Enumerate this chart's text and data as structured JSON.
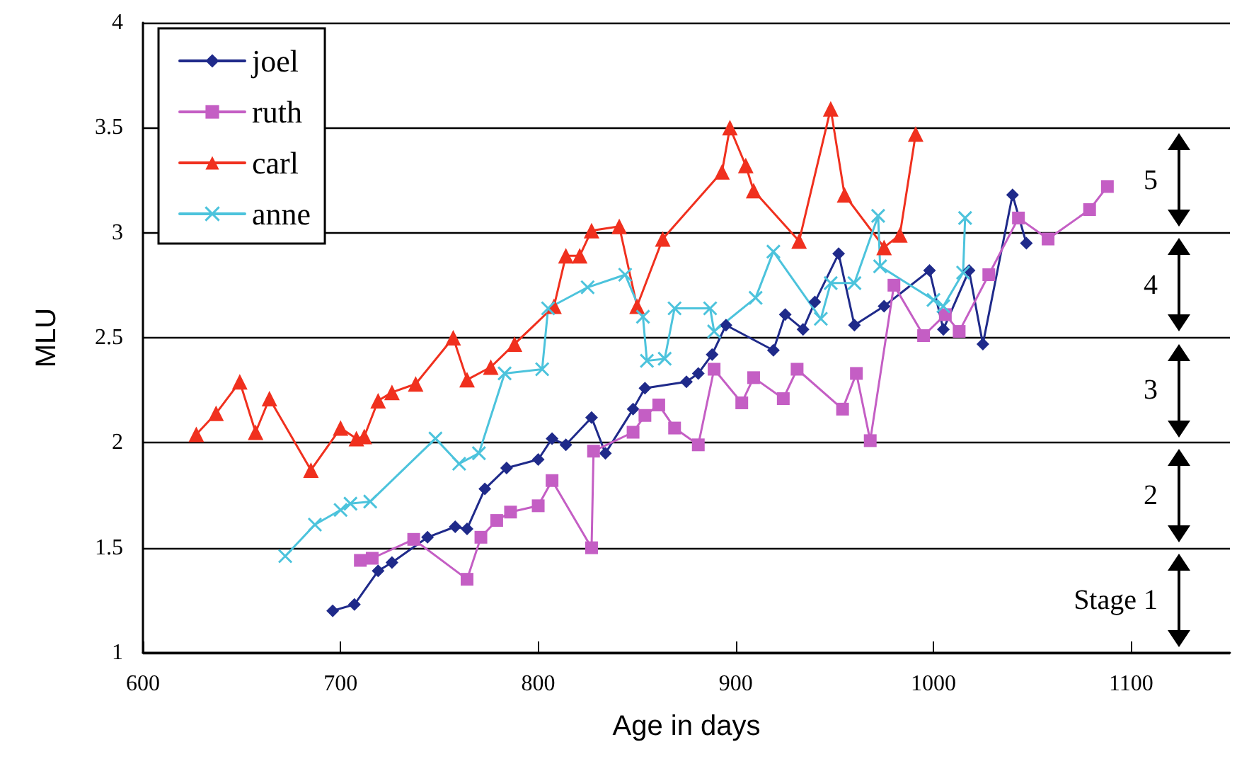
{
  "chart_data": {
    "type": "line",
    "xlabel": "Age in days",
    "ylabel": "MLU",
    "xlim": [
      600,
      1150
    ],
    "xticks": [
      600,
      700,
      800,
      900,
      1000,
      1100
    ],
    "ylim": [
      1,
      4
    ],
    "yticks": [
      1,
      1.5,
      2,
      2.5,
      3,
      3.5,
      4
    ],
    "grid": "y",
    "legend": "top left",
    "line_style": "solid",
    "series": [
      {
        "name": "joel",
        "color": "#1f2a8a",
        "marker": "diamond",
        "x": [
          696,
          707,
          719,
          726,
          744,
          758,
          764,
          773,
          784,
          800,
          807,
          814,
          827,
          834,
          848,
          854,
          875,
          881,
          888,
          895,
          919,
          925,
          934,
          940,
          952,
          960,
          975,
          998,
          1005,
          1018,
          1025,
          1040,
          1047
        ],
        "values": [
          1.2,
          1.23,
          1.39,
          1.43,
          1.55,
          1.6,
          1.59,
          1.78,
          1.88,
          1.92,
          2.02,
          1.99,
          2.12,
          1.95,
          2.16,
          2.26,
          2.29,
          2.33,
          2.42,
          2.56,
          2.44,
          2.61,
          2.54,
          2.67,
          2.9,
          2.56,
          2.65,
          2.82,
          2.54,
          2.82,
          2.47,
          3.18,
          2.95
        ]
      },
      {
        "name": "ruth",
        "color": "#c45ec4",
        "marker": "square",
        "x": [
          710,
          716,
          737,
          764,
          771,
          779,
          786,
          800,
          807,
          827,
          828,
          848,
          854,
          861,
          869,
          881,
          889,
          903,
          909,
          924,
          931,
          954,
          961,
          968,
          980,
          995,
          1006,
          1013,
          1028,
          1043,
          1058,
          1079,
          1088
        ],
        "values": [
          1.44,
          1.45,
          1.54,
          1.35,
          1.55,
          1.63,
          1.67,
          1.7,
          1.82,
          1.5,
          1.96,
          2.05,
          2.13,
          2.18,
          2.07,
          1.99,
          2.35,
          2.19,
          2.31,
          2.21,
          2.35,
          2.16,
          2.33,
          2.01,
          2.75,
          2.51,
          2.61,
          2.53,
          2.8,
          3.07,
          2.97,
          3.11,
          3.22
        ]
      },
      {
        "name": "carl",
        "color": "#f0301e",
        "marker": "triangle",
        "x": [
          627,
          637,
          649,
          657,
          664,
          685,
          700,
          708,
          712,
          719,
          726,
          738,
          757,
          764,
          776,
          788,
          808,
          814,
          821,
          827,
          841,
          850,
          863,
          893,
          897,
          905,
          909,
          932,
          948,
          955,
          975,
          983,
          991
        ],
        "values": [
          2.04,
          2.14,
          2.29,
          2.05,
          2.21,
          1.87,
          2.07,
          2.02,
          2.03,
          2.2,
          2.24,
          2.28,
          2.5,
          2.3,
          2.36,
          2.47,
          2.65,
          2.89,
          2.89,
          3.01,
          3.03,
          2.65,
          2.97,
          3.29,
          3.5,
          3.32,
          3.2,
          2.96,
          3.59,
          3.18,
          2.93,
          2.99,
          3.47
        ]
      },
      {
        "name": "anne",
        "color": "#4cc3dc",
        "marker": "cross",
        "x": [
          672,
          687,
          700,
          705,
          715,
          748,
          760,
          770,
          783,
          802,
          805,
          825,
          844,
          853,
          855,
          864,
          869,
          887,
          889,
          910,
          919,
          943,
          948,
          960,
          972,
          973,
          1000,
          1005,
          1015,
          1016
        ],
        "values": [
          1.46,
          1.61,
          1.68,
          1.71,
          1.72,
          2.02,
          1.9,
          1.95,
          2.33,
          2.35,
          2.64,
          2.74,
          2.8,
          2.6,
          2.39,
          2.4,
          2.64,
          2.64,
          2.53,
          2.69,
          2.91,
          2.59,
          2.76,
          2.76,
          3.08,
          2.84,
          2.68,
          2.65,
          2.81,
          3.07
        ]
      }
    ],
    "annotations": [
      "5",
      "4",
      "3",
      "2",
      "Stage 1"
    ]
  }
}
